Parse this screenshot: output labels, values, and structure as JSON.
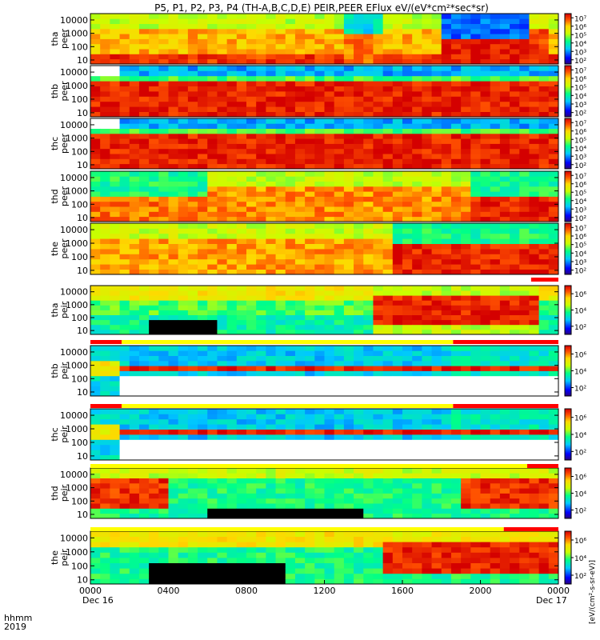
{
  "chart_data": {
    "type": "heatmap",
    "title": "P5, P1, P2, P3, P4 (TH-A,B,C,D,E) PEIR,PEER EFlux eV/(eV*cm²*sec*sr)",
    "x_ticks": [
      "0000",
      "0400",
      "0800",
      "1200",
      "1600",
      "2000",
      "0000"
    ],
    "x_range_hours": [
      0,
      24
    ],
    "date_labels": [
      "Dec 16",
      "Dec 17"
    ],
    "xlabel_row1": "hhmm",
    "xlabel_row2": "2019",
    "yscale": "log",
    "ylim_eV": [
      5,
      30000
    ],
    "y_ticks": [
      "10",
      "100",
      "1000",
      "10000"
    ],
    "colorbar_scale": "log",
    "colorbar_ticks_electron": [
      "10²",
      "10³",
      "10⁴",
      "10⁵",
      "10⁶",
      "10⁷"
    ],
    "colorbar_ticks_ion": [
      "10²",
      "10⁴",
      "10⁶"
    ],
    "colorbar_unit": "[eV/(cm²-s-sr-eV)]",
    "panels": [
      {
        "probe": "tha",
        "species": "peer",
        "label_line1": "tha",
        "label_line2": "peer"
      },
      {
        "probe": "thb",
        "species": "peer",
        "label_line1": "thb",
        "label_line2": "peer"
      },
      {
        "probe": "thc",
        "species": "peer",
        "label_line1": "thc",
        "label_line2": "peer"
      },
      {
        "probe": "thd",
        "species": "peer",
        "label_line1": "thd",
        "label_line2": "peer"
      },
      {
        "probe": "the",
        "species": "peer",
        "label_line1": "the",
        "label_line2": "peer"
      },
      {
        "probe": "tha",
        "species": "peir",
        "label_line1": "tha",
        "label_line2": "peir"
      },
      {
        "probe": "thb",
        "species": "peir",
        "label_line1": "thb",
        "label_line2": "peir"
      },
      {
        "probe": "thc",
        "species": "peir",
        "label_line1": "thc",
        "label_line2": "peir"
      },
      {
        "probe": "thd",
        "species": "peir",
        "label_line1": "thd",
        "label_line2": "peir"
      },
      {
        "probe": "the",
        "species": "peir",
        "label_line1": "the",
        "label_line2": "peir"
      }
    ],
    "mode_bars": [
      {
        "after_panel": 4,
        "segments": [
          {
            "start_h": 22.6,
            "end_h": 24,
            "color": "#ff0000"
          }
        ]
      },
      {
        "after_panel": 5,
        "segments": [
          {
            "start_h": 0,
            "end_h": 1.6,
            "color": "#ff0000"
          },
          {
            "start_h": 1.6,
            "end_h": 18.6,
            "color": "#ffff00"
          },
          {
            "start_h": 18.6,
            "end_h": 24,
            "color": "#ff0000"
          }
        ]
      },
      {
        "after_panel": 6,
        "segments": [
          {
            "start_h": 0,
            "end_h": 1.6,
            "color": "#ff0000"
          },
          {
            "start_h": 1.6,
            "end_h": 18.6,
            "color": "#ffff00"
          },
          {
            "start_h": 18.6,
            "end_h": 24,
            "color": "#ff0000"
          }
        ]
      },
      {
        "after_panel": 7,
        "segments": [
          {
            "start_h": 0,
            "end_h": 22.4,
            "color": "#ffff00"
          },
          {
            "start_h": 22.4,
            "end_h": 24,
            "color": "#ff0000"
          }
        ]
      },
      {
        "after_panel": 8,
        "segments": [
          {
            "start_h": 0,
            "end_h": 21.2,
            "color": "#ffff00"
          },
          {
            "start_h": 21.2,
            "end_h": 24,
            "color": "#ff0000"
          }
        ]
      }
    ]
  }
}
